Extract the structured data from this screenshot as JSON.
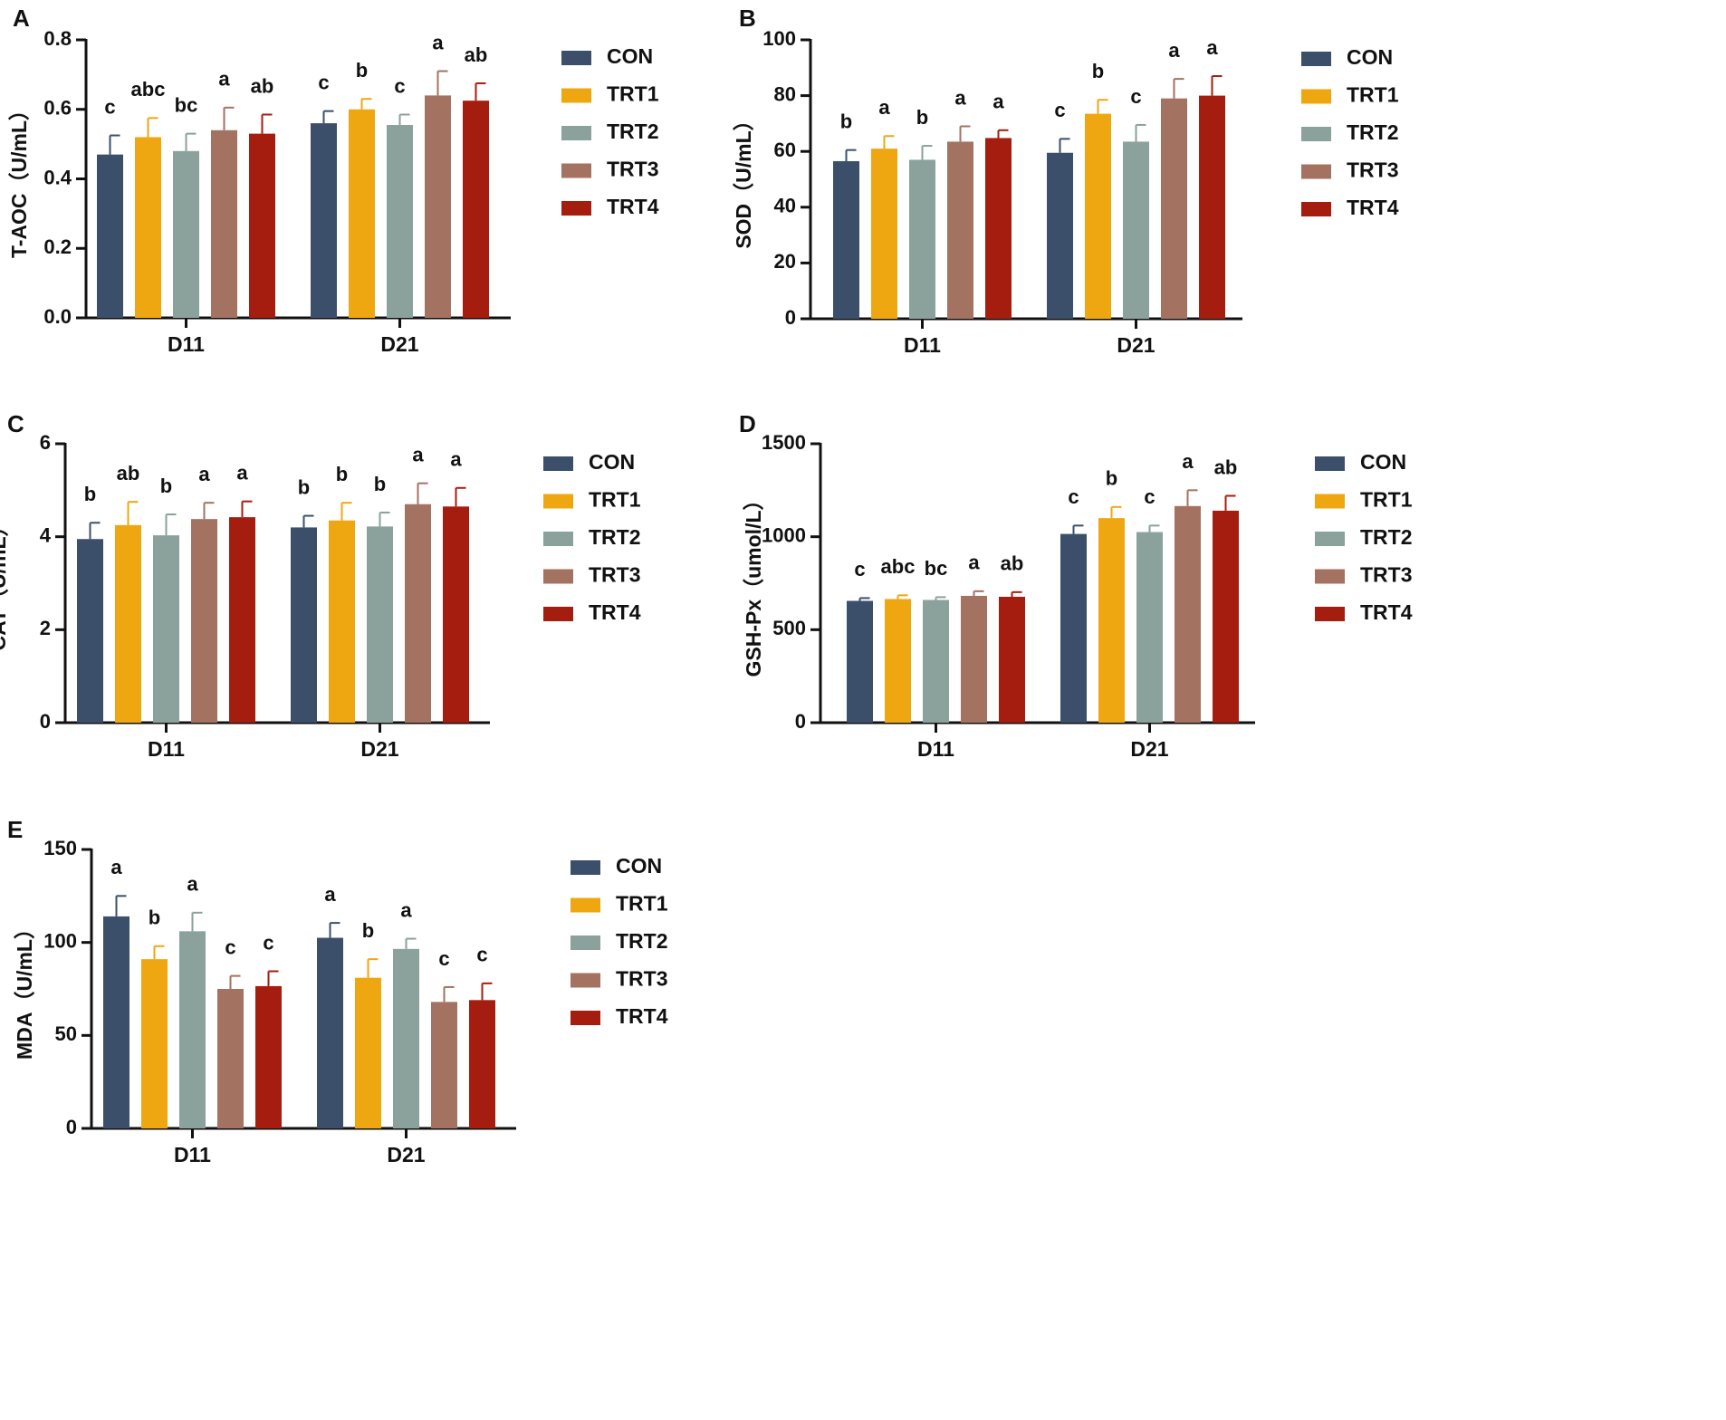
{
  "colors": {
    "CON": "#3b4f6b",
    "TRT1": "#efa711",
    "TRT2": "#8aa19c",
    "TRT3": "#a47261",
    "TRT4": "#a51d0e",
    "axis": "#111111"
  },
  "legend_entries": [
    "CON",
    "TRT1",
    "TRT2",
    "TRT3",
    "TRT4"
  ],
  "chart_data": [
    {
      "type": "bar",
      "panel": "A",
      "title": "",
      "ylabel": "T-AOC（U/mL）",
      "xlabel": "",
      "categories": [
        "D11",
        "D21"
      ],
      "ylim": [
        0,
        0.8
      ],
      "yticks": [
        0.0,
        0.2,
        0.4,
        0.6,
        0.8
      ],
      "ytick_labels": [
        "0.0",
        "0.2",
        "0.4",
        "0.6",
        "0.8"
      ],
      "series": [
        {
          "name": "CON",
          "values": [
            0.47,
            0.56
          ],
          "errors": [
            0.055,
            0.035
          ],
          "letters": [
            "c",
            "c"
          ]
        },
        {
          "name": "TRT1",
          "values": [
            0.52,
            0.6
          ],
          "errors": [
            0.055,
            0.03
          ],
          "letters": [
            "abc",
            "b"
          ]
        },
        {
          "name": "TRT2",
          "values": [
            0.48,
            0.555
          ],
          "errors": [
            0.05,
            0.03
          ],
          "letters": [
            "bc",
            "c"
          ]
        },
        {
          "name": "TRT3",
          "values": [
            0.54,
            0.64
          ],
          "errors": [
            0.065,
            0.07
          ],
          "letters": [
            "a",
            "a"
          ]
        },
        {
          "name": "TRT4",
          "values": [
            0.53,
            0.625
          ],
          "errors": [
            0.055,
            0.05
          ],
          "letters": [
            "ab",
            "ab"
          ]
        }
      ]
    },
    {
      "type": "bar",
      "panel": "B",
      "title": "",
      "ylabel": "SOD（U/mL）",
      "xlabel": "",
      "categories": [
        "D11",
        "D21"
      ],
      "ylim": [
        0,
        100
      ],
      "yticks": [
        0,
        20,
        40,
        60,
        80,
        100
      ],
      "ytick_labels": [
        "0",
        "20",
        "40",
        "60",
        "80",
        "100"
      ],
      "series": [
        {
          "name": "CON",
          "values": [
            56.5,
            59.5
          ],
          "errors": [
            4.0,
            5.0
          ],
          "letters": [
            "b",
            "c"
          ]
        },
        {
          "name": "TRT1",
          "values": [
            61.0,
            73.5
          ],
          "errors": [
            4.5,
            5.0
          ],
          "letters": [
            "a",
            "b"
          ]
        },
        {
          "name": "TRT2",
          "values": [
            57.0,
            63.5
          ],
          "errors": [
            5.0,
            6.0
          ],
          "letters": [
            "b",
            "c"
          ]
        },
        {
          "name": "TRT3",
          "values": [
            63.5,
            79.0
          ],
          "errors": [
            5.5,
            7.0
          ],
          "letters": [
            "a",
            "a"
          ]
        },
        {
          "name": "TRT4",
          "values": [
            64.8,
            80.0
          ],
          "errors": [
            2.8,
            7.0
          ],
          "letters": [
            "a",
            "a"
          ]
        }
      ]
    },
    {
      "type": "bar",
      "panel": "C",
      "title": "",
      "ylabel": "CAT（U/mL）",
      "xlabel": "",
      "categories": [
        "D11",
        "D21"
      ],
      "ylim": [
        0,
        6
      ],
      "yticks": [
        0,
        2,
        4,
        6
      ],
      "ytick_labels": [
        "0",
        "2",
        "4",
        "6"
      ],
      "series": [
        {
          "name": "CON",
          "values": [
            3.95,
            4.2
          ],
          "errors": [
            0.35,
            0.25
          ],
          "letters": [
            "b",
            "b"
          ]
        },
        {
          "name": "TRT1",
          "values": [
            4.25,
            4.35
          ],
          "errors": [
            0.5,
            0.38
          ],
          "letters": [
            "ab",
            "b"
          ]
        },
        {
          "name": "TRT2",
          "values": [
            4.03,
            4.22
          ],
          "errors": [
            0.45,
            0.3
          ],
          "letters": [
            "b",
            "b"
          ]
        },
        {
          "name": "TRT3",
          "values": [
            4.38,
            4.7
          ],
          "errors": [
            0.35,
            0.45
          ],
          "letters": [
            "a",
            "a"
          ]
        },
        {
          "name": "TRT4",
          "values": [
            4.42,
            4.65
          ],
          "errors": [
            0.34,
            0.4
          ],
          "letters": [
            "a",
            "a"
          ]
        }
      ]
    },
    {
      "type": "bar",
      "panel": "D",
      "title": "",
      "ylabel": "GSH-Px（umol/L）",
      "xlabel": "",
      "categories": [
        "D11",
        "D21"
      ],
      "ylim": [
        0,
        1500
      ],
      "yticks": [
        0,
        500,
        1000,
        1500
      ],
      "ytick_labels": [
        "0",
        "500",
        "1000",
        "1500"
      ],
      "series": [
        {
          "name": "CON",
          "values": [
            655,
            1015
          ],
          "errors": [
            15,
            45
          ],
          "letters": [
            "c",
            "c"
          ]
        },
        {
          "name": "TRT1",
          "values": [
            665,
            1100
          ],
          "errors": [
            20,
            60
          ],
          "letters": [
            "abc",
            "b"
          ]
        },
        {
          "name": "TRT2",
          "values": [
            660,
            1025
          ],
          "errors": [
            15,
            35
          ],
          "letters": [
            "bc",
            "c"
          ]
        },
        {
          "name": "TRT3",
          "values": [
            682,
            1165
          ],
          "errors": [
            25,
            85
          ],
          "letters": [
            "a",
            "a"
          ]
        },
        {
          "name": "TRT4",
          "values": [
            677,
            1140
          ],
          "errors": [
            25,
            80
          ],
          "letters": [
            "ab",
            "ab"
          ]
        }
      ]
    },
    {
      "type": "bar",
      "panel": "E",
      "title": "",
      "ylabel": "MDA（U/mL）",
      "xlabel": "",
      "categories": [
        "D11",
        "D21"
      ],
      "ylim": [
        0,
        150
      ],
      "yticks": [
        0,
        50,
        100,
        150
      ],
      "ytick_labels": [
        "0",
        "50",
        "100",
        "150"
      ],
      "series": [
        {
          "name": "CON",
          "values": [
            114,
            102.5
          ],
          "errors": [
            11,
            8
          ],
          "letters": [
            "a",
            "a"
          ]
        },
        {
          "name": "TRT1",
          "values": [
            91,
            81
          ],
          "errors": [
            7,
            10
          ],
          "letters": [
            "b",
            "b"
          ]
        },
        {
          "name": "TRT2",
          "values": [
            106,
            96.5
          ],
          "errors": [
            10,
            5.5
          ],
          "letters": [
            "a",
            "a"
          ]
        },
        {
          "name": "TRT3",
          "values": [
            75,
            68
          ],
          "errors": [
            7,
            8
          ],
          "letters": [
            "c",
            "c"
          ]
        },
        {
          "name": "TRT4",
          "values": [
            76.5,
            69
          ],
          "errors": [
            8,
            9
          ],
          "letters": [
            "c",
            "c"
          ]
        }
      ]
    }
  ]
}
